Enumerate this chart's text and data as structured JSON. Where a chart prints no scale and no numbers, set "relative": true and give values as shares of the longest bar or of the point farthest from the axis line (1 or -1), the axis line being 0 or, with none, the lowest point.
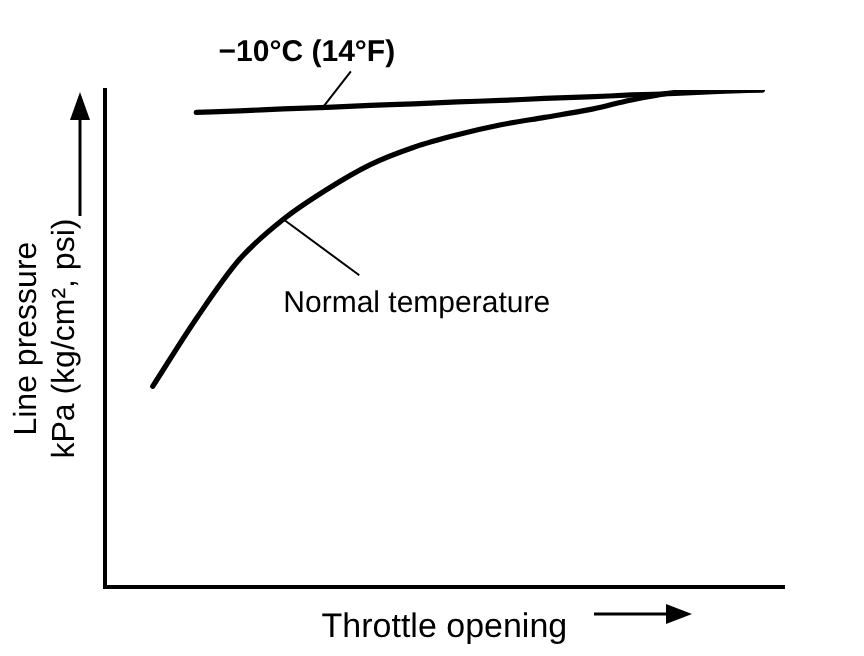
{
  "chart_data": {
    "type": "line",
    "relative": true,
    "xlabel": "Throttle opening",
    "ylabel": "Line pressure\nkPa (kg/cm², psi)",
    "categories": [
      null,
      null,
      null,
      null,
      null,
      null,
      null,
      null,
      null,
      null,
      null,
      null,
      null,
      null,
      null
    ],
    "series": [
      {
        "name": "−10°C (14°F)",
        "color": "#000000",
        "values": [
          null,
          0.955,
          0.958,
          0.962,
          0.965,
          0.969,
          0.972,
          0.976,
          0.979,
          0.983,
          0.986,
          0.99,
          0.993,
          0.997,
          1
        ]
      },
      {
        "name": "Normal temperature",
        "color": "#000000",
        "values": [
          0.404,
          0.54,
          0.66,
          0.74,
          0.8,
          0.85,
          0.885,
          0.91,
          0.93,
          0.945,
          0.96,
          0.98,
          0.995,
          1,
          1
        ]
      }
    ],
    "grid": false,
    "marker": "none",
    "line_style": "solid"
  }
}
